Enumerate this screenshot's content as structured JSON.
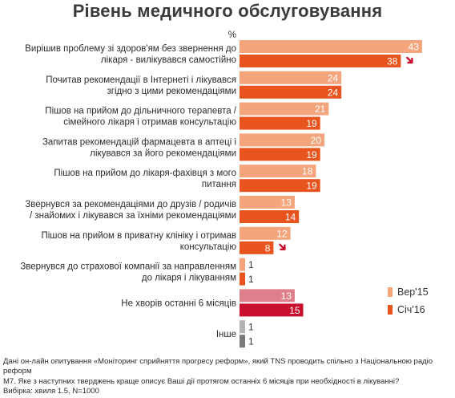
{
  "header": {
    "title": "Рівень медичного обслуговування"
  },
  "colors": {
    "series1": "#f4a57c",
    "series2": "#e8541d",
    "highlight1": "#e07f8c",
    "highlight2": "#c8102e",
    "other1": "#b3b3b3",
    "other2": "#7a7a7a",
    "arrow": "#c8102e"
  },
  "footer": {
    "source": "Дані он-лайн опитування «Моніторинг сприйняття прогресу реформ», який TNS проводить спільно з Національною радіо реформ",
    "question": "М7. Яке з наступних тверджень краще описує Ваші дії протягом останніх 6 місяців при необхідності в лікуванні?",
    "sample": "Вибірка: хвиля 1.5, N=1000"
  },
  "chart_data": {
    "type": "bar",
    "orientation": "horizontal",
    "unit_label": "%",
    "xlim": [
      0,
      50
    ],
    "categories": [
      [
        "Вирішив проблему зі здоров'ям без звернення до",
        "лікаря - вилікувався самостійно"
      ],
      [
        "Почитав рекомендації в Інтернеті і лікувався",
        "згідно з цими рекомендаціями"
      ],
      [
        "Пішов на прийом до дільничного терапевта /",
        "сімейного лікаря і отримав  консультацію"
      ],
      [
        "Запитав рекомендацій фармацевта в аптеці і",
        "лікувався за його рекомендаціями"
      ],
      [
        "Пішов на прийом до лікаря-фахівця з мого",
        "питання"
      ],
      [
        "Звернувся за рекомендаціями до друзів / родичів",
        "/ знайомих і лікувався за їхніми рекомендаціями"
      ],
      [
        "Пішов  на прийом в приватну клініку і отримав",
        "консультацію"
      ],
      [
        "Звернувся до страхової компанії за направленням",
        "до лікаря і лікуванням"
      ],
      [
        "Не хворів останні 6 місяців"
      ],
      [
        "Інше"
      ]
    ],
    "series": [
      {
        "name": "Вер'15",
        "values": [
          43,
          24,
          21,
          20,
          18,
          13,
          12,
          1,
          13,
          1
        ]
      },
      {
        "name": "Січ'16",
        "values": [
          38,
          24,
          19,
          19,
          19,
          14,
          8,
          1,
          15,
          1
        ]
      }
    ],
    "decrease_markers": [
      0,
      6
    ],
    "legend_position": "right"
  }
}
